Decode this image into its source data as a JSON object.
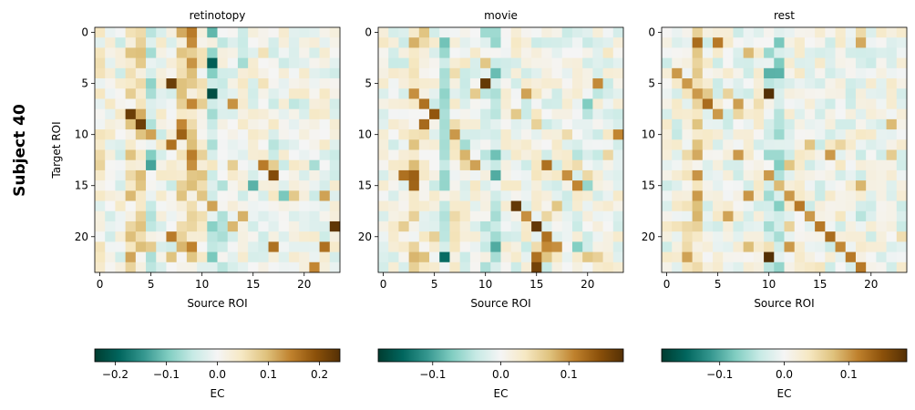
{
  "figure": {
    "row_label": "Subject 40",
    "colormap": "BrBG_r",
    "palette": [
      "#003c30",
      "#01665e",
      "#35978f",
      "#80cdc1",
      "#c7eae5",
      "#f5f5f5",
      "#f6e8c3",
      "#dfc27d",
      "#bf812d",
      "#8c510a",
      "#543005"
    ]
  },
  "chart_data": [
    {
      "type": "heatmap",
      "title": "retinotopy",
      "xlabel": "Source ROI",
      "ylabel": "Target ROI",
      "n": 24,
      "xticks": [
        0,
        5,
        10,
        15,
        20
      ],
      "yticks": [
        0,
        5,
        10,
        15,
        20
      ],
      "vlim": [
        -0.24,
        0.24
      ],
      "colorbar": {
        "label": "EC",
        "ticks": [
          -0.2,
          -0.1,
          0.0,
          0.1,
          0.2
        ],
        "tick_labels": [
          "−0.2",
          "−0.1",
          "0.0",
          "0.1",
          "0.2"
        ]
      },
      "seed": 4071,
      "noise": 0.045,
      "column_bias": {
        "0": 0.02,
        "3": 0.06,
        "4": 0.06,
        "5": -0.04,
        "8": 0.06,
        "9": 0.08,
        "10": 0.04,
        "11": -0.06,
        "12": -0.03
      },
      "highlights": [
        [
          2,
          9,
          0.08
        ],
        [
          3,
          11,
          -0.2
        ],
        [
          5,
          7,
          0.22
        ],
        [
          6,
          11,
          -0.22
        ],
        [
          7,
          9,
          0.14
        ],
        [
          8,
          3,
          0.22
        ],
        [
          9,
          4,
          0.22
        ],
        [
          9,
          8,
          0.14
        ],
        [
          10,
          5,
          0.12
        ],
        [
          11,
          7,
          0.16
        ],
        [
          13,
          16,
          0.15
        ],
        [
          14,
          17,
          0.2
        ],
        [
          15,
          15,
          -0.12
        ],
        [
          16,
          18,
          -0.1
        ],
        [
          16,
          22,
          0.12
        ],
        [
          17,
          11,
          0.12
        ],
        [
          19,
          23,
          0.23
        ],
        [
          20,
          7,
          0.15
        ],
        [
          21,
          17,
          0.16
        ],
        [
          21,
          22,
          0.16
        ],
        [
          23,
          21,
          0.14
        ]
      ]
    },
    {
      "type": "heatmap",
      "title": "movie",
      "xlabel": "Source ROI",
      "ylabel": "",
      "n": 24,
      "xticks": [
        0,
        5,
        10,
        15,
        20
      ],
      "yticks": [
        0,
        5,
        10,
        15,
        20
      ],
      "vlim": [
        -0.18,
        0.18
      ],
      "colorbar": {
        "label": "EC",
        "ticks": [
          -0.1,
          0.0,
          0.1
        ],
        "tick_labels": [
          "−0.1",
          "0.0",
          "0.1"
        ]
      },
      "seed": 9127,
      "noise": 0.035,
      "column_bias": {
        "3": 0.04,
        "4": 0.02,
        "6": -0.04,
        "7": 0.02,
        "10": -0.02,
        "11": -0.05,
        "15": 0.02
      },
      "highlights": [
        [
          5,
          10,
          0.17
        ],
        [
          6,
          3,
          0.1
        ],
        [
          7,
          4,
          0.12
        ],
        [
          8,
          5,
          0.14
        ],
        [
          10,
          6,
          -0.05
        ],
        [
          12,
          8,
          0.08
        ],
        [
          12,
          11,
          -0.08
        ],
        [
          13,
          9,
          0.09
        ],
        [
          14,
          2,
          0.12
        ],
        [
          15,
          3,
          0.13
        ],
        [
          17,
          13,
          0.17
        ],
        [
          18,
          14,
          0.1
        ],
        [
          19,
          15,
          0.17
        ],
        [
          20,
          16,
          0.12
        ],
        [
          21,
          17,
          0.1
        ],
        [
          21,
          19,
          -0.07
        ],
        [
          22,
          15,
          0.12
        ],
        [
          23,
          15,
          0.16
        ],
        [
          22,
          6,
          -0.14
        ],
        [
          13,
          16,
          0.12
        ],
        [
          14,
          18,
          0.1
        ]
      ]
    },
    {
      "type": "heatmap",
      "title": "rest",
      "xlabel": "Source ROI",
      "ylabel": "",
      "n": 24,
      "xticks": [
        0,
        5,
        10,
        15,
        20
      ],
      "yticks": [
        0,
        5,
        10,
        15,
        20
      ],
      "vlim": [
        -0.19,
        0.19
      ],
      "colorbar": {
        "label": "EC",
        "ticks": [
          -0.1,
          0.0,
          0.1
        ],
        "tick_labels": [
          "−0.1",
          "0.0",
          "0.1"
        ]
      },
      "seed": 3319,
      "noise": 0.035,
      "column_bias": {
        "2": 0.02,
        "3": 0.05,
        "10": -0.03,
        "11": -0.04
      },
      "highlights": [
        [
          1,
          3,
          0.13
        ],
        [
          1,
          5,
          0.12
        ],
        [
          4,
          1,
          0.1
        ],
        [
          5,
          2,
          0.1
        ],
        [
          6,
          3,
          0.1
        ],
        [
          6,
          10,
          0.19
        ],
        [
          7,
          4,
          0.13
        ],
        [
          8,
          5,
          0.1
        ],
        [
          14,
          10,
          0.1
        ],
        [
          15,
          11,
          0.08
        ],
        [
          16,
          12,
          0.1
        ],
        [
          17,
          13,
          0.12
        ],
        [
          18,
          14,
          0.1
        ],
        [
          19,
          15,
          0.12
        ],
        [
          20,
          16,
          0.13
        ],
        [
          21,
          17,
          0.11
        ],
        [
          22,
          18,
          0.12
        ],
        [
          23,
          19,
          0.12
        ],
        [
          22,
          10,
          0.19
        ],
        [
          21,
          12,
          0.1
        ],
        [
          12,
          16,
          0.1
        ]
      ]
    }
  ]
}
